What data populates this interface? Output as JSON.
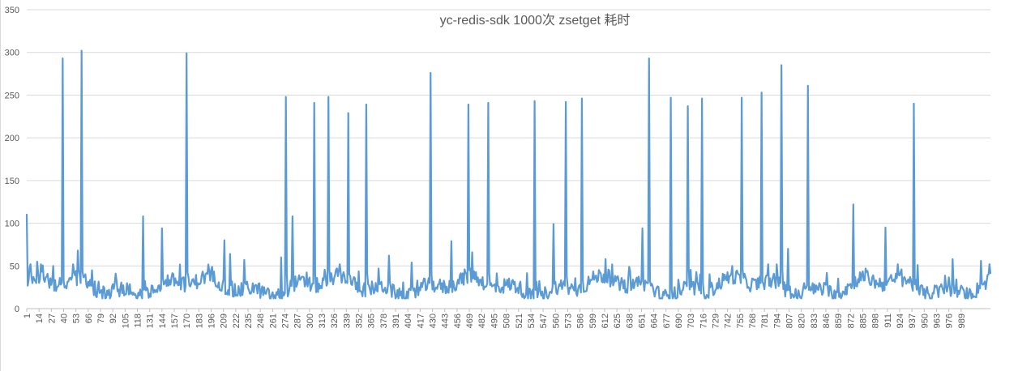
{
  "chart_data": {
    "type": "line",
    "title": "yc-redis-sdk 1000次 zsetget 耗时",
    "xlabel": "",
    "ylabel": "",
    "ylim": [
      0,
      350
    ],
    "yticks": [
      0,
      50,
      100,
      150,
      200,
      250,
      300,
      350
    ],
    "x_count": 1000,
    "x_tick_step": 13,
    "x_tick_start": 1,
    "x_tick_labels": [
      "1",
      "14",
      "27",
      "40",
      "53",
      "66",
      "79",
      "92",
      "105",
      "118",
      "131",
      "144",
      "157",
      "170",
      "183",
      "196",
      "209",
      "222",
      "235",
      "248",
      "261",
      "274",
      "287",
      "300",
      "313",
      "326",
      "339",
      "352",
      "365",
      "378",
      "391",
      "404",
      "417",
      "430",
      "443",
      "456",
      "469",
      "482",
      "495",
      "508",
      "521",
      "534",
      "547",
      "560",
      "573",
      "586",
      "599",
      "612",
      "625",
      "638",
      "651",
      "664",
      "677",
      "690",
      "703",
      "716",
      "729",
      "742",
      "755",
      "768",
      "781",
      "794",
      "807",
      "820",
      "833",
      "846",
      "859",
      "872",
      "885",
      "898",
      "911",
      "924",
      "937",
      "950",
      "963",
      "976",
      "989"
    ],
    "grid": "horizontal",
    "legend": "none",
    "line_color": "#5b9bd5",
    "baseline_range": [
      12,
      48
    ],
    "spikes": [
      {
        "x": 1,
        "y": 110
      },
      {
        "x": 4,
        "y": 48
      },
      {
        "x": 12,
        "y": 55
      },
      {
        "x": 29,
        "y": 50
      },
      {
        "x": 39,
        "y": 293
      },
      {
        "x": 55,
        "y": 68
      },
      {
        "x": 59,
        "y": 302
      },
      {
        "x": 70,
        "y": 45
      },
      {
        "x": 124,
        "y": 108
      },
      {
        "x": 144,
        "y": 94
      },
      {
        "x": 170,
        "y": 299
      },
      {
        "x": 197,
        "y": 49
      },
      {
        "x": 210,
        "y": 80
      },
      {
        "x": 216,
        "y": 64
      },
      {
        "x": 231,
        "y": 57
      },
      {
        "x": 270,
        "y": 60
      },
      {
        "x": 275,
        "y": 248
      },
      {
        "x": 282,
        "y": 108
      },
      {
        "x": 305,
        "y": 241
      },
      {
        "x": 320,
        "y": 248
      },
      {
        "x": 341,
        "y": 229
      },
      {
        "x": 360,
        "y": 239
      },
      {
        "x": 373,
        "y": 47
      },
      {
        "x": 384,
        "y": 62
      },
      {
        "x": 408,
        "y": 54
      },
      {
        "x": 428,
        "y": 276
      },
      {
        "x": 450,
        "y": 79
      },
      {
        "x": 468,
        "y": 239
      },
      {
        "x": 472,
        "y": 66
      },
      {
        "x": 489,
        "y": 241
      },
      {
        "x": 538,
        "y": 243
      },
      {
        "x": 558,
        "y": 99
      },
      {
        "x": 571,
        "y": 242
      },
      {
        "x": 588,
        "y": 246
      },
      {
        "x": 613,
        "y": 58
      },
      {
        "x": 639,
        "y": 44
      },
      {
        "x": 652,
        "y": 94
      },
      {
        "x": 659,
        "y": 293
      },
      {
        "x": 682,
        "y": 247
      },
      {
        "x": 700,
        "y": 237
      },
      {
        "x": 715,
        "y": 246
      },
      {
        "x": 747,
        "y": 50
      },
      {
        "x": 757,
        "y": 247
      },
      {
        "x": 778,
        "y": 253
      },
      {
        "x": 799,
        "y": 285
      },
      {
        "x": 806,
        "y": 70
      },
      {
        "x": 827,
        "y": 261
      },
      {
        "x": 875,
        "y": 122
      },
      {
        "x": 888,
        "y": 47
      },
      {
        "x": 909,
        "y": 95
      },
      {
        "x": 922,
        "y": 52
      },
      {
        "x": 926,
        "y": 46
      },
      {
        "x": 939,
        "y": 240
      },
      {
        "x": 980,
        "y": 58
      },
      {
        "x": 1010,
        "y": 56
      },
      {
        "x": 1018,
        "y": 40
      }
    ]
  }
}
